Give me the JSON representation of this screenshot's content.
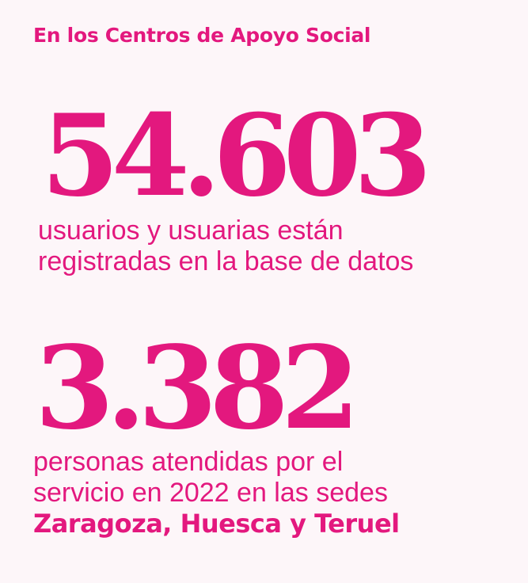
{
  "heading": "En los Centros de Apoyo Social",
  "stat_users": {
    "value": "54.603",
    "caption_line1": "usuarios y usuarias están",
    "caption_line2": "registradas en la base de datos"
  },
  "stat_people": {
    "value": "3.382",
    "caption_line1": "personas atendidas por el",
    "caption_line2": "servicio en 2022 en las sedes",
    "caption_line3": "Zaragoza, Huesca y Teruel"
  },
  "colors": {
    "accent": "#e3187e",
    "background": "#fdf6f9"
  }
}
